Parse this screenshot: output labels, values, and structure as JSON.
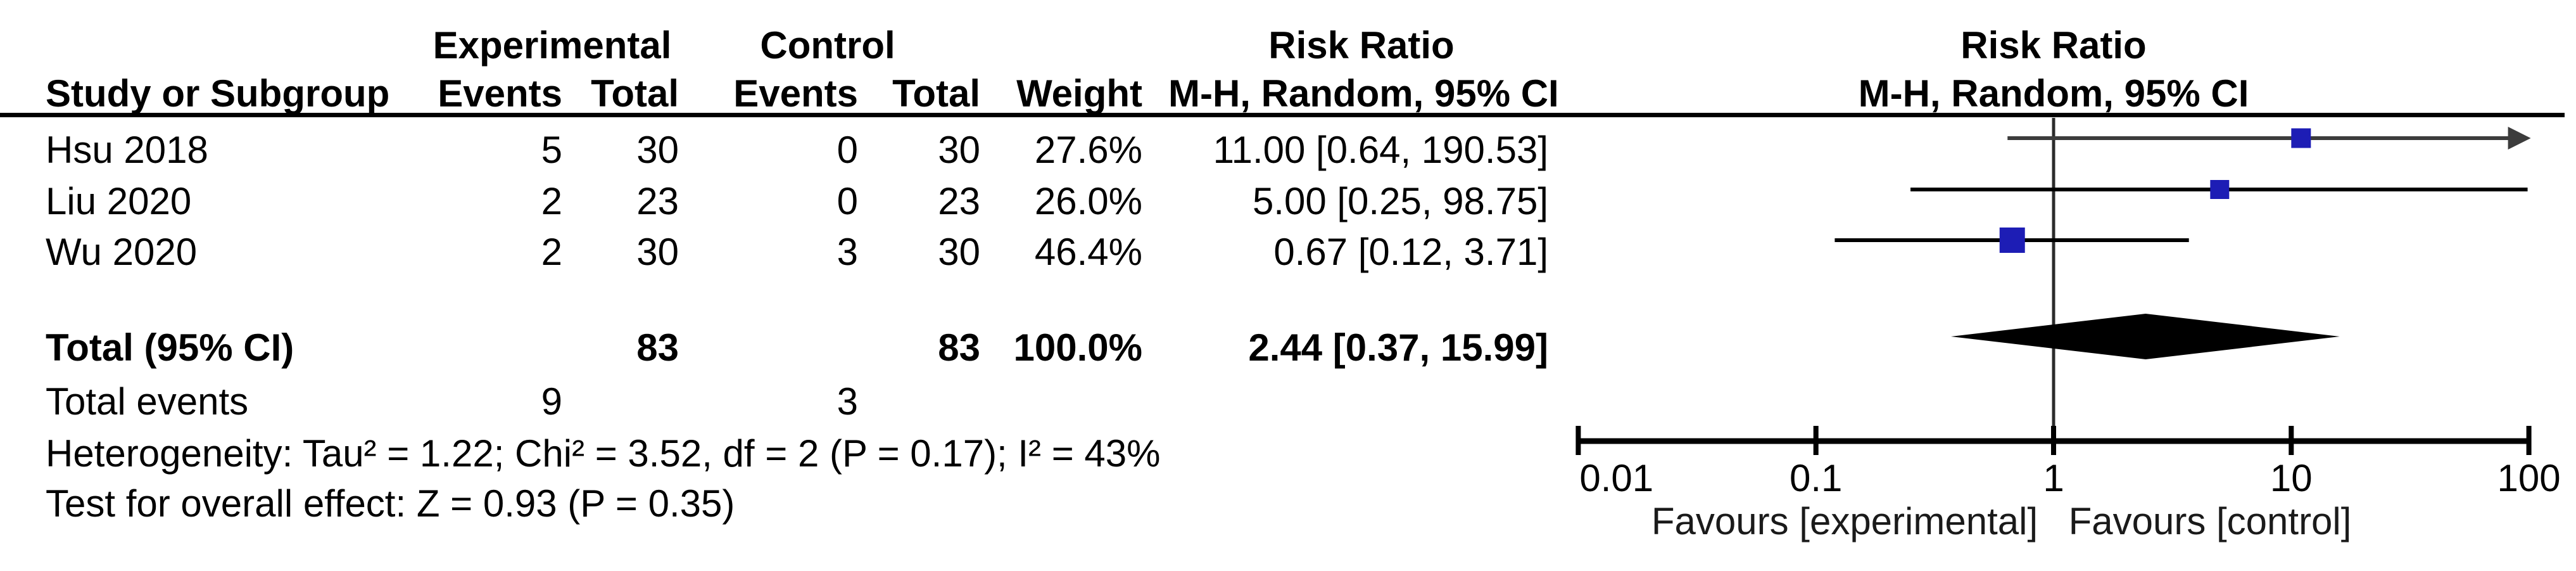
{
  "headers": {
    "group_experimental": "Experimental",
    "group_control": "Control",
    "risk_ratio_left": "Risk Ratio",
    "risk_ratio_right": "Risk Ratio",
    "study_or_subgroup": "Study or Subgroup",
    "events_experimental": "Events",
    "total_experimental": "Total",
    "events_control": "Events",
    "total_control": "Total",
    "weight": "Weight",
    "mh_ci_left": "M-H, Random, 95% CI",
    "mh_ci_right": "M-H, Random, 95% CI"
  },
  "total_row": {
    "label": "Total (95% CI)",
    "exp_total": "83",
    "ctrl_total": "83",
    "weight": "100.0%",
    "estimate_label": "2.44 [0.37, 15.99]"
  },
  "total_events_row": {
    "label": "Total events",
    "experimental": "9",
    "control": "3"
  },
  "footnotes": {
    "heterogeneity": "Heterogeneity: Tau² = 1.22; Chi² = 3.52, df = 2 (P = 0.17); I² = 43%",
    "overall_effect": "Test for overall effect: Z = 0.93 (P = 0.35)"
  },
  "chart_data": {
    "type": "forest",
    "effect_measure": "Risk Ratio",
    "method": "M-H, Random, 95% CI",
    "x_scale": "log",
    "x_ticks": [
      0.01,
      0.1,
      1,
      10,
      100
    ],
    "x_tick_labels": [
      "0.01",
      "0.1",
      "1",
      "10",
      "100"
    ],
    "favours_left": "Favours [experimental]",
    "favours_right": "Favours [control]",
    "marker_color": "#1d1db5",
    "line_color": "#000000",
    "arrow_line_color": "#3c3c3c",
    "studies": [
      {
        "study": "Hsu 2018",
        "exp_events": "5",
        "exp_total": "30",
        "ctrl_events": "0",
        "ctrl_total": "30",
        "weight": "27.6%",
        "weight_pct": 27.6,
        "rr": 11.0,
        "ci_low": 0.64,
        "ci_high": 190.53,
        "estimate_label": "11.00 [0.64, 190.53]"
      },
      {
        "study": "Liu 2020",
        "exp_events": "2",
        "exp_total": "23",
        "ctrl_events": "0",
        "ctrl_total": "23",
        "weight": "26.0%",
        "weight_pct": 26.0,
        "rr": 5.0,
        "ci_low": 0.25,
        "ci_high": 98.75,
        "estimate_label": "5.00 [0.25, 98.75]"
      },
      {
        "study": "Wu 2020",
        "exp_events": "2",
        "exp_total": "30",
        "ctrl_events": "3",
        "ctrl_total": "30",
        "weight": "46.4%",
        "weight_pct": 46.4,
        "rr": 0.67,
        "ci_low": 0.12,
        "ci_high": 3.71,
        "estimate_label": "0.67 [0.12, 3.71]"
      }
    ],
    "overall": {
      "rr": 2.44,
      "ci_low": 0.37,
      "ci_high": 15.99,
      "weight_pct": 100.0
    },
    "heterogeneity": {
      "tau2": 1.22,
      "chi2": 3.52,
      "df": 2,
      "p": 0.17,
      "i2_pct": 43
    },
    "overall_effect_test": {
      "z": 0.93,
      "p": 0.35
    }
  }
}
